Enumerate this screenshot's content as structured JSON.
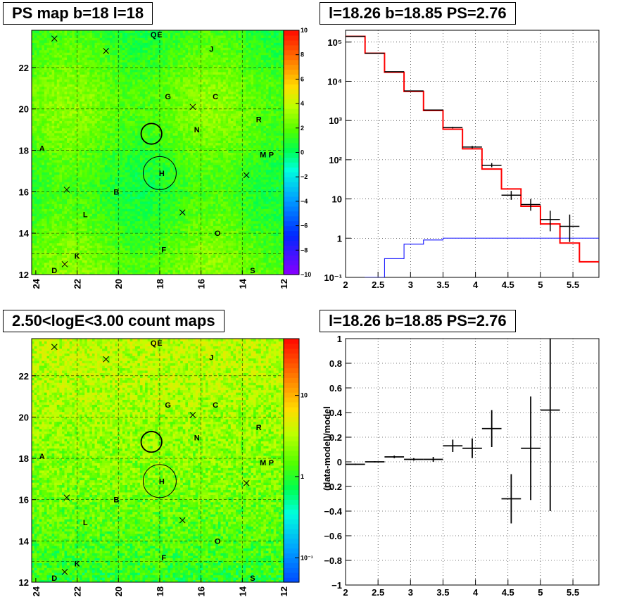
{
  "chart_data": [
    {
      "type": "heatmap",
      "title": "PS map b=18 l=18",
      "x_ticks": [
        "24",
        "22",
        "20",
        "18",
        "16",
        "14",
        "12"
      ],
      "y_ticks": [
        "12",
        "14",
        "16",
        "18",
        "20",
        "22"
      ],
      "xlim": [
        24.2,
        12
      ],
      "ylim": [
        12,
        23.8
      ],
      "colorbar_ticks": [
        "10",
        "8",
        "6",
        "4",
        "2",
        "0",
        "−2",
        "−4",
        "−6",
        "−8",
        "−10"
      ],
      "zlim": [
        -10,
        10
      ],
      "base_level": 1.5,
      "sources": [
        {
          "label": "Q",
          "x": 18.3,
          "y": 23.6
        },
        {
          "label": "E",
          "x": 18.0,
          "y": 23.6
        },
        {
          "label": "J",
          "x": 15.5,
          "y": 22.9
        },
        {
          "label": "G",
          "x": 17.6,
          "y": 20.6
        },
        {
          "label": "C",
          "x": 15.3,
          "y": 20.6
        },
        {
          "label": "R",
          "x": 13.2,
          "y": 19.5
        },
        {
          "label": "N",
          "x": 16.2,
          "y": 19.0
        },
        {
          "label": "A",
          "x": 23.7,
          "y": 18.1
        },
        {
          "label": "M",
          "x": 13.0,
          "y": 17.8
        },
        {
          "label": "P",
          "x": 12.6,
          "y": 17.8
        },
        {
          "label": "H",
          "x": 17.9,
          "y": 16.9
        },
        {
          "label": "B",
          "x": 20.1,
          "y": 16.0
        },
        {
          "label": "L",
          "x": 21.6,
          "y": 14.9
        },
        {
          "label": "O",
          "x": 15.2,
          "y": 14.0
        },
        {
          "label": "F",
          "x": 17.8,
          "y": 13.2
        },
        {
          "label": "K",
          "x": 22.0,
          "y": 12.9
        },
        {
          "label": "D",
          "x": 23.1,
          "y": 12.2
        },
        {
          "label": "S",
          "x": 13.5,
          "y": 12.2
        }
      ],
      "crosses": [
        {
          "x": 23.1,
          "y": 23.4
        },
        {
          "x": 20.6,
          "y": 22.8
        },
        {
          "x": 16.4,
          "y": 20.1
        },
        {
          "x": 22.5,
          "y": 16.1
        },
        {
          "x": 13.8,
          "y": 16.8
        },
        {
          "x": 16.9,
          "y": 15.0
        },
        {
          "x": 22.6,
          "y": 12.5
        }
      ],
      "circles": [
        {
          "x": 18.4,
          "y": 18.8,
          "r": 0.5
        },
        {
          "x": 18.0,
          "y": 16.9,
          "r": 0.8
        }
      ]
    },
    {
      "type": "line",
      "title": "l=18.26 b=18.85 PS=2.76",
      "x_ticks": [
        "2",
        "2.5",
        "3",
        "3.5",
        "4",
        "4.5",
        "5",
        "5.5"
      ],
      "y_ticks": [
        "10⁻¹",
        "1",
        "10",
        "10²",
        "10³",
        "10⁴",
        "10⁵"
      ],
      "xlim": [
        2.0,
        5.9
      ],
      "ylim": [
        0.1,
        200000
      ],
      "log_y": true,
      "bin_edges": [
        2.0,
        2.3,
        2.6,
        2.9,
        3.2,
        3.5,
        3.8,
        4.1,
        4.4,
        4.7,
        5.0,
        5.3,
        5.6,
        5.9
      ],
      "series": [
        {
          "color": "#ff0000",
          "values": [
            140000,
            52000,
            17000,
            5500,
            1800,
            600,
            190,
            58,
            18,
            6.5,
            2.3,
            0.75,
            0.25
          ]
        },
        {
          "color": "#0000ff",
          "values": [
            0.02,
            0.1,
            0.3,
            0.7,
            0.9,
            1.0,
            1.0,
            1.0,
            1.0,
            1.0,
            1.0,
            1.0,
            1.0
          ]
        }
      ],
      "points": [
        {
          "x": 2.15,
          "xerr": 0.15,
          "y": 140000,
          "lo": 138000,
          "hi": 142000
        },
        {
          "x": 2.45,
          "xerr": 0.15,
          "y": 52000,
          "lo": 51500,
          "hi": 52500
        },
        {
          "x": 2.75,
          "xerr": 0.15,
          "y": 17500,
          "lo": 17200,
          "hi": 17800
        },
        {
          "x": 3.05,
          "xerr": 0.15,
          "y": 5700,
          "lo": 5600,
          "hi": 5800
        },
        {
          "x": 3.35,
          "xerr": 0.15,
          "y": 1850,
          "lo": 1800,
          "hi": 1900
        },
        {
          "x": 3.65,
          "xerr": 0.15,
          "y": 660,
          "lo": 630,
          "hi": 690
        },
        {
          "x": 3.95,
          "xerr": 0.15,
          "y": 210,
          "lo": 195,
          "hi": 225
        },
        {
          "x": 4.25,
          "xerr": 0.15,
          "y": 72,
          "lo": 64,
          "hi": 82
        },
        {
          "x": 4.55,
          "xerr": 0.15,
          "y": 12.5,
          "lo": 9.5,
          "hi": 16
        },
        {
          "x": 4.85,
          "xerr": 0.15,
          "y": 7.2,
          "lo": 5,
          "hi": 10
        },
        {
          "x": 5.15,
          "xerr": 0.15,
          "y": 3,
          "lo": 1.5,
          "hi": 5
        },
        {
          "x": 5.45,
          "xerr": 0.15,
          "y": 2,
          "lo": 0.8,
          "hi": 4
        }
      ]
    },
    {
      "type": "heatmap",
      "title": "2.50<logE<3.00 count maps",
      "x_ticks": [
        "24",
        "22",
        "20",
        "18",
        "16",
        "14",
        "12"
      ],
      "y_ticks": [
        "12",
        "14",
        "16",
        "18",
        "20",
        "22"
      ],
      "xlim": [
        24.2,
        12
      ],
      "ylim": [
        12,
        23.8
      ],
      "colorbar_ticks": [
        "10",
        "1",
        "10⁻¹"
      ],
      "zlim": [
        0.05,
        50
      ],
      "log_z": true,
      "base_level": 4,
      "sources": [
        {
          "label": "Q",
          "x": 18.3,
          "y": 23.6
        },
        {
          "label": "E",
          "x": 18.0,
          "y": 23.6
        },
        {
          "label": "J",
          "x": 15.5,
          "y": 22.9
        },
        {
          "label": "G",
          "x": 17.6,
          "y": 20.6
        },
        {
          "label": "C",
          "x": 15.3,
          "y": 20.6
        },
        {
          "label": "R",
          "x": 13.2,
          "y": 19.5
        },
        {
          "label": "N",
          "x": 16.2,
          "y": 19.0
        },
        {
          "label": "A",
          "x": 23.7,
          "y": 18.1
        },
        {
          "label": "M",
          "x": 13.0,
          "y": 17.8
        },
        {
          "label": "P",
          "x": 12.6,
          "y": 17.8
        },
        {
          "label": "H",
          "x": 17.9,
          "y": 16.9
        },
        {
          "label": "B",
          "x": 20.1,
          "y": 16.0
        },
        {
          "label": "L",
          "x": 21.6,
          "y": 14.9
        },
        {
          "label": "O",
          "x": 15.2,
          "y": 14.0
        },
        {
          "label": "F",
          "x": 17.8,
          "y": 13.2
        },
        {
          "label": "K",
          "x": 22.0,
          "y": 12.9
        },
        {
          "label": "D",
          "x": 23.1,
          "y": 12.2
        },
        {
          "label": "S",
          "x": 13.5,
          "y": 12.2
        }
      ],
      "crosses": [
        {
          "x": 23.1,
          "y": 23.4
        },
        {
          "x": 20.6,
          "y": 22.8
        },
        {
          "x": 16.4,
          "y": 20.1
        },
        {
          "x": 22.5,
          "y": 16.1
        },
        {
          "x": 13.8,
          "y": 16.8
        },
        {
          "x": 16.9,
          "y": 15.0
        },
        {
          "x": 22.6,
          "y": 12.5
        }
      ],
      "circles": [
        {
          "x": 18.4,
          "y": 18.8,
          "r": 0.5
        },
        {
          "x": 18.0,
          "y": 16.9,
          "r": 0.8
        }
      ]
    },
    {
      "type": "scatter",
      "title": "l=18.26 b=18.85 PS=2.76",
      "ylabel": "(data-model)/model",
      "x_ticks": [
        "2",
        "2.5",
        "3",
        "3.5",
        "4",
        "4.5",
        "5",
        "5.5"
      ],
      "y_ticks": [
        "−1",
        "−0.8",
        "−0.6",
        "−0.4",
        "−0.2",
        "0",
        "0.2",
        "0.4",
        "0.6",
        "0.8",
        "1"
      ],
      "xlim": [
        2.0,
        5.9
      ],
      "ylim": [
        -1,
        1
      ],
      "points": [
        {
          "x": 2.15,
          "xerr": 0.15,
          "y": -0.02,
          "yerr": 0.005
        },
        {
          "x": 2.45,
          "xerr": 0.15,
          "y": 0.0,
          "yerr": 0.005
        },
        {
          "x": 2.75,
          "xerr": 0.15,
          "y": 0.04,
          "yerr": 0.01
        },
        {
          "x": 3.05,
          "xerr": 0.15,
          "y": 0.02,
          "yerr": 0.01
        },
        {
          "x": 3.35,
          "xerr": 0.15,
          "y": 0.02,
          "yerr": 0.02
        },
        {
          "x": 3.65,
          "xerr": 0.15,
          "y": 0.13,
          "yerr": 0.05
        },
        {
          "x": 3.95,
          "xerr": 0.15,
          "y": 0.11,
          "yerr": 0.08
        },
        {
          "x": 4.25,
          "xerr": 0.15,
          "y": 0.27,
          "yerr": 0.15
        },
        {
          "x": 4.55,
          "xerr": 0.15,
          "y": -0.3,
          "yerr": 0.2
        },
        {
          "x": 4.85,
          "xerr": 0.15,
          "y": 0.11,
          "yerr": 0.42
        },
        {
          "x": 5.15,
          "xerr": 0.15,
          "y": 0.42,
          "yerr": 0.82
        }
      ]
    }
  ]
}
